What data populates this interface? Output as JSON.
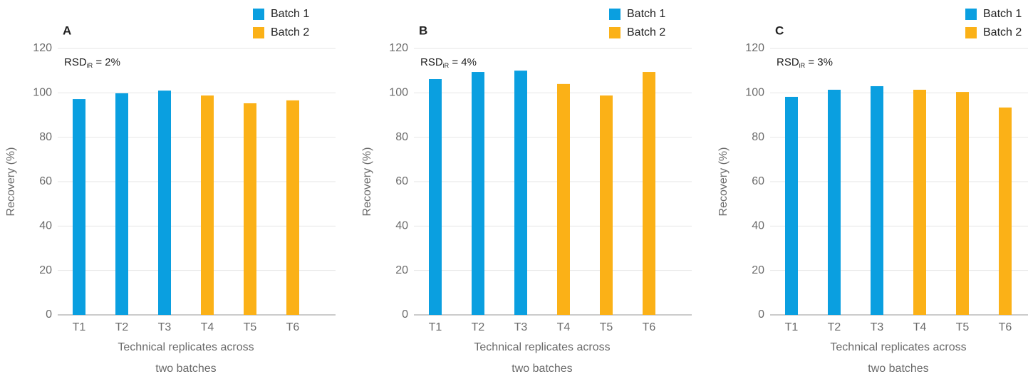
{
  "chart_data": [
    {
      "type": "bar",
      "panel": "A",
      "annotation": {
        "text": "RSD",
        "subscript": "iR",
        "suffix": " = 2%"
      },
      "categories": [
        "T1",
        "T2",
        "T3",
        "T4",
        "T5",
        "T6"
      ],
      "series": [
        {
          "name": "Batch 1",
          "color": "#0a9fe0",
          "values": [
            97.2,
            99.8,
            101,
            null,
            null,
            null
          ]
        },
        {
          "name": "Batch 2",
          "color": "#fbb117",
          "values": [
            null,
            null,
            null,
            98.8,
            95.3,
            96.6
          ]
        }
      ],
      "ylabel": "Recovery (%)",
      "xlabel": [
        "Technical replicates across",
        "two batches"
      ],
      "ylim": [
        0,
        120
      ],
      "yticks": [
        0,
        20,
        40,
        60,
        80,
        100,
        120
      ],
      "grid": true,
      "legend": "upper right"
    },
    {
      "type": "bar",
      "panel": "B",
      "annotation": {
        "text": "RSD",
        "subscript": "iR",
        "suffix": " = 4%"
      },
      "categories": [
        "T1",
        "T2",
        "T3",
        "T4",
        "T5",
        "T6"
      ],
      "series": [
        {
          "name": "Batch 1",
          "color": "#0a9fe0",
          "values": [
            106.2,
            109.4,
            110,
            null,
            null,
            null
          ]
        },
        {
          "name": "Batch 2",
          "color": "#fbb117",
          "values": [
            null,
            null,
            null,
            104,
            98.8,
            109.4
          ]
        }
      ],
      "ylabel": "Recovery (%)",
      "xlabel": [
        "Technical replicates across",
        "two batches"
      ],
      "ylim": [
        0,
        120
      ],
      "yticks": [
        0,
        20,
        40,
        60,
        80,
        100,
        120
      ],
      "grid": true,
      "legend": "upper right"
    },
    {
      "type": "bar",
      "panel": "C",
      "annotation": {
        "text": "RSD",
        "subscript": "iR",
        "suffix": " = 3%"
      },
      "categories": [
        "T1",
        "T2",
        "T3",
        "T4",
        "T5",
        "T6"
      ],
      "series": [
        {
          "name": "Batch 1",
          "color": "#0a9fe0",
          "values": [
            98.2,
            101.4,
            103,
            null,
            null,
            null
          ]
        },
        {
          "name": "Batch 2",
          "color": "#fbb117",
          "values": [
            null,
            null,
            null,
            101.4,
            100.4,
            93.4
          ]
        }
      ],
      "ylabel": "Recovery (%)",
      "xlabel": [
        "Technical replicates across",
        "two batches"
      ],
      "ylim": [
        0,
        120
      ],
      "yticks": [
        0,
        20,
        40,
        60,
        80,
        100,
        120
      ],
      "grid": true,
      "legend": "upper right"
    }
  ]
}
